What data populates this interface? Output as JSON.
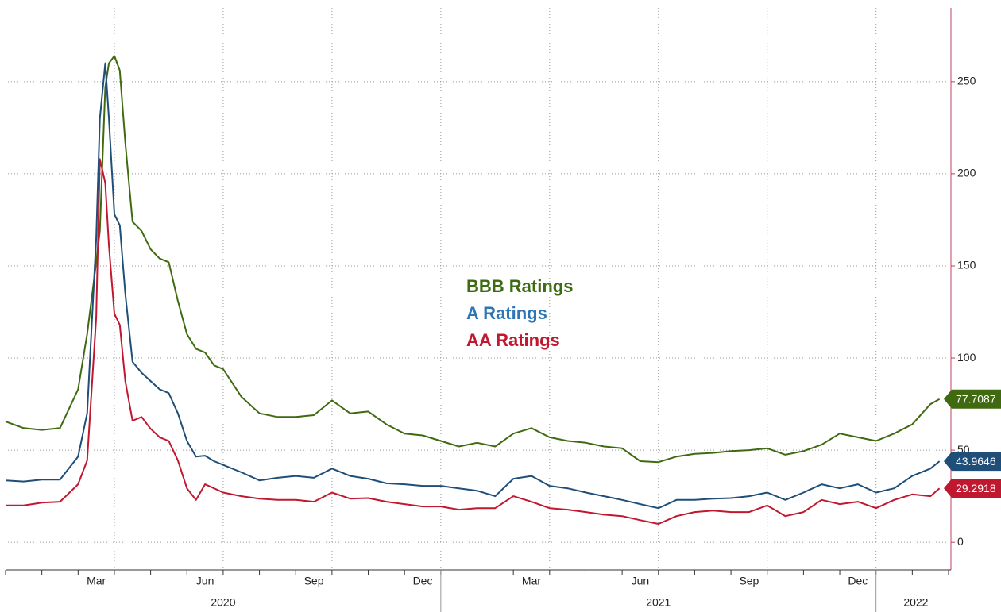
{
  "chart_data": {
    "type": "line",
    "x": [
      0,
      0.5,
      1,
      1.5,
      2,
      2.25,
      2.5,
      2.6,
      2.75,
      2.85,
      3,
      3.15,
      3.3,
      3.5,
      3.75,
      4,
      4.25,
      4.5,
      4.75,
      5,
      5.25,
      5.5,
      5.75,
      6,
      6.5,
      7,
      7.5,
      8,
      8.5,
      9,
      9.5,
      10,
      10.5,
      11,
      11.5,
      12,
      12.5,
      13,
      13.5,
      14,
      14.5,
      15,
      15.5,
      16,
      16.5,
      17,
      17.5,
      18,
      18.5,
      19,
      19.5,
      20,
      20.5,
      21,
      21.5,
      22,
      22.5,
      23,
      23.5,
      24,
      24.5,
      25,
      25.5,
      25.75
    ],
    "series": [
      {
        "name": "BBB Ratings",
        "color": "#3f6a10",
        "legend_color": "#3d6b12",
        "values": [
          65.5,
          62,
          61,
          62,
          83,
          113,
          152,
          169,
          247,
          260,
          264,
          256,
          217,
          174,
          169,
          159,
          154,
          152,
          131,
          113,
          105,
          103,
          96,
          94,
          79,
          70,
          68,
          68,
          69,
          77,
          70,
          71,
          64,
          59,
          58,
          55,
          52,
          54,
          52,
          59,
          62,
          57,
          55,
          54,
          52,
          51,
          44,
          43.5,
          46.5,
          48,
          48.5,
          49.5,
          50,
          51,
          47.5,
          49.5,
          53,
          59,
          57,
          55,
          59,
          64,
          75,
          77.7087
        ],
        "end_label": "77.7087"
      },
      {
        "name": "A Ratings",
        "color": "#1f4e79",
        "legend_color": "#2e75b6",
        "values": [
          33.6,
          33,
          34,
          34,
          46.5,
          70,
          165,
          230,
          260,
          230,
          178,
          172,
          135,
          98,
          92,
          87.5,
          83,
          81,
          70,
          55,
          46.5,
          47,
          44,
          42,
          38,
          33.6,
          35,
          36,
          35,
          40,
          36,
          34.5,
          32,
          31.5,
          30.6,
          30.6,
          29.3,
          28,
          25,
          34.5,
          36,
          30.6,
          29.3,
          27,
          25,
          23,
          20.7,
          18.5,
          23,
          23,
          23.7,
          24,
          25,
          27,
          23,
          27,
          31.5,
          29.3,
          31.5,
          27,
          29.3,
          36,
          40,
          43.9646
        ],
        "end_label": "43.9646"
      },
      {
        "name": "AA Ratings",
        "color": "#c0182f",
        "legend_color": "#c0182f",
        "values": [
          20,
          20,
          21.5,
          22,
          31.5,
          44.4,
          122,
          208,
          195,
          161,
          124,
          118,
          87.5,
          66,
          68,
          61.6,
          57,
          55,
          44.4,
          29.3,
          23,
          31.5,
          29.3,
          27,
          25,
          23.7,
          23,
          23,
          22,
          27,
          23.7,
          24,
          22,
          20.7,
          19.4,
          19.4,
          17.7,
          18.5,
          18.5,
          25,
          22,
          18.5,
          17.7,
          16.4,
          15,
          14.2,
          12,
          10,
          14.2,
          16.4,
          17.2,
          16.4,
          16.4,
          20,
          14.2,
          16.4,
          23,
          20.7,
          22,
          18.5,
          23,
          26,
          25,
          29.2918
        ],
        "end_label": "29.2918"
      }
    ],
    "xlim": [
      0,
      26
    ],
    "xticks": [
      {
        "value": 2.5,
        "label": "Mar"
      },
      {
        "value": 5.5,
        "label": "Jun"
      },
      {
        "value": 8.5,
        "label": "Sep"
      },
      {
        "value": 11.5,
        "label": "Dec"
      },
      {
        "value": 14.5,
        "label": "Mar"
      },
      {
        "value": 17.5,
        "label": "Jun"
      },
      {
        "value": 20.5,
        "label": "Sep"
      },
      {
        "value": 23.5,
        "label": "Dec"
      }
    ],
    "xgrid": [
      3,
      6,
      9,
      12,
      15,
      18,
      21,
      24
    ],
    "year_labels": [
      {
        "value": 6,
        "label": "2020"
      },
      {
        "value": 18,
        "label": "2021"
      },
      {
        "value": 25.1,
        "label": "2022"
      }
    ],
    "year_breaks": [
      12,
      24
    ],
    "ylim": [
      -15,
      290
    ],
    "yticks": [
      0,
      50,
      100,
      150,
      200,
      250
    ],
    "grid": true
  }
}
